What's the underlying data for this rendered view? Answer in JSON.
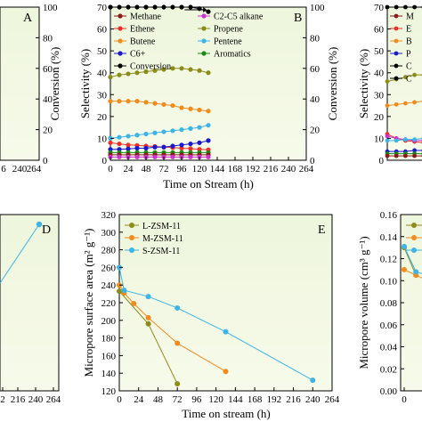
{
  "chart_data": [
    {
      "panel": "A",
      "type": "line",
      "panel_label": "A",
      "xlabel": "",
      "ylabel": "Conversion (%)",
      "xticks": [
        "6",
        "240",
        "264"
      ],
      "yticks": [
        "0",
        "20",
        "40",
        "60",
        "80",
        "100"
      ],
      "ylim": [
        0,
        100
      ],
      "series": []
    },
    {
      "panel": "B",
      "type": "line",
      "panel_label": "B",
      "xlabel": "Time on Stream (h)",
      "ylabel": "Selectivity (%)",
      "ylabel_right": "Conversion (%)",
      "xlim": [
        0,
        264
      ],
      "ylim": [
        0,
        70
      ],
      "ylim_right": [
        0,
        100
      ],
      "xticks": [
        "0",
        "24",
        "48",
        "72",
        "96",
        "120",
        "144",
        "168",
        "192",
        "216",
        "240",
        "264"
      ],
      "yticks": [
        "0",
        "10",
        "20",
        "30",
        "40",
        "50",
        "60",
        "70"
      ],
      "yticks_right": [
        "0",
        "20",
        "40",
        "60",
        "80",
        "100"
      ],
      "legend": [
        {
          "label": "Methane",
          "color": "#8b1a1a"
        },
        {
          "label": "C2-C5 alkane",
          "color": "#cc33cc"
        },
        {
          "label": "Ethene",
          "color": "#e8322a"
        },
        {
          "label": "Propene",
          "color": "#8c8c1a"
        },
        {
          "label": "Butene",
          "color": "#f08c1e"
        },
        {
          "label": "Pentene",
          "color": "#3cb4e6"
        },
        {
          "label": "C6+",
          "color": "#1a1acc"
        },
        {
          "label": "Aromatics",
          "color": "#1a8c1a"
        },
        {
          "label": "Conversion",
          "color": "#000000"
        }
      ],
      "x": [
        0,
        12,
        24,
        36,
        48,
        60,
        72,
        84,
        96,
        108,
        120,
        132
      ],
      "series": [
        {
          "label": "Propene",
          "axis": "left",
          "color": "#8c8c1a",
          "values": [
            38,
            39,
            39.5,
            40,
            40.5,
            41,
            41.5,
            42,
            42,
            41.5,
            41,
            40
          ]
        },
        {
          "label": "Butene",
          "axis": "left",
          "color": "#f08c1e",
          "values": [
            27,
            27,
            27,
            27,
            26.5,
            26,
            25.5,
            25,
            24,
            23.5,
            23,
            22.5
          ]
        },
        {
          "label": "Pentene",
          "axis": "left",
          "color": "#3cb4e6",
          "values": [
            10,
            10.5,
            11,
            11.5,
            12,
            12.5,
            13,
            13.5,
            14,
            14.5,
            15,
            16
          ]
        },
        {
          "label": "Ethene",
          "axis": "left",
          "color": "#e8322a",
          "values": [
            8,
            7.5,
            7,
            6.8,
            6.5,
            6.3,
            6,
            5.8,
            5.5,
            5.3,
            5,
            4.8
          ]
        },
        {
          "label": "C6+",
          "axis": "left",
          "color": "#1a1acc",
          "values": [
            5,
            5,
            5.2,
            5.5,
            5.5,
            6,
            6,
            6.5,
            7,
            7.5,
            8,
            9
          ]
        },
        {
          "label": "Aromatics",
          "axis": "left",
          "color": "#1a8c1a",
          "values": [
            3.5,
            3.5,
            3.5,
            3.5,
            3.5,
            3.5,
            3.5,
            3.5,
            3.5,
            3.5,
            3.5,
            3.5
          ]
        },
        {
          "label": "Methane",
          "axis": "left",
          "color": "#8b1a1a",
          "values": [
            2.5,
            2.5,
            2.5,
            2.5,
            2.5,
            2.5,
            2.5,
            2.5,
            2.5,
            2.5,
            2.5,
            2.5
          ]
        },
        {
          "label": "C2-C5 alkane",
          "axis": "left",
          "color": "#cc33cc",
          "values": [
            1.5,
            1.5,
            1.5,
            1.5,
            1.5,
            1.5,
            1.5,
            1.5,
            1.5,
            1.5,
            1.5,
            1.5
          ]
        },
        {
          "label": "Conversion",
          "axis": "right",
          "color": "#000000",
          "values": [
            100,
            100,
            100,
            100,
            100,
            100,
            100,
            100,
            100,
            100,
            99,
            97
          ]
        }
      ]
    },
    {
      "panel": "C",
      "type": "line",
      "panel_label": "",
      "ylabel": "Selectivity (%)",
      "ylim": [
        0,
        70
      ],
      "yticks": [
        "0",
        "10",
        "20",
        "30",
        "40",
        "50",
        "60",
        "70"
      ],
      "legend_partial": [
        "M",
        "E",
        "B",
        "P",
        "C",
        "C"
      ],
      "x": [
        0,
        12,
        24,
        36,
        48
      ],
      "series": [
        {
          "label": "Propene",
          "color": "#8c8c1a",
          "values": [
            36,
            37,
            38,
            39,
            39
          ]
        },
        {
          "label": "Butene",
          "color": "#f08c1e",
          "values": [
            25,
            25.5,
            26,
            26.5,
            27
          ]
        },
        {
          "label": "Ethene",
          "color": "#e8322a",
          "values": [
            12,
            10,
            9,
            8.5,
            8
          ]
        },
        {
          "label": "C2-C5 alkane",
          "color": "#cc33cc",
          "values": [
            11,
            10,
            9.5,
            9,
            9
          ]
        },
        {
          "label": "Pentene",
          "color": "#3cb4e6",
          "values": [
            9,
            9,
            9.5,
            9.5,
            10
          ]
        },
        {
          "label": "C6+",
          "color": "#1a1acc",
          "values": [
            4,
            4,
            4,
            4.5,
            4.5
          ]
        },
        {
          "label": "Aromatics",
          "color": "#1a8c1a",
          "values": [
            3,
            3,
            3,
            3,
            3
          ]
        },
        {
          "label": "Methane",
          "color": "#8b1a1a",
          "values": [
            2,
            2,
            2,
            2,
            2
          ]
        },
        {
          "label": "Conversion",
          "color": "#000000",
          "values": [
            100,
            100,
            100,
            100,
            100
          ]
        }
      ]
    },
    {
      "panel": "D",
      "type": "line",
      "panel_label": "D",
      "xticks": [
        "2",
        "216",
        "240",
        "264"
      ],
      "series": [
        {
          "label": "",
          "color": "#3cb4e6",
          "x": [
            0,
            240
          ],
          "values": [
            0.6,
            1.0
          ]
        }
      ]
    },
    {
      "panel": "E",
      "type": "line",
      "panel_label": "E",
      "xlabel": "Time on stream (h)",
      "ylabel": "Micropore surface area (m² g⁻¹)",
      "xlim": [
        0,
        264
      ],
      "ylim": [
        120,
        320
      ],
      "xticks": [
        "0",
        "24",
        "48",
        "72",
        "96",
        "120",
        "144",
        "168",
        "192",
        "216",
        "240",
        "264"
      ],
      "yticks": [
        "120",
        "140",
        "160",
        "180",
        "200",
        "220",
        "240",
        "260",
        "280",
        "300",
        "320"
      ],
      "legend": [
        {
          "label": "L-ZSM-11",
          "color": "#8c8c1a"
        },
        {
          "label": "M-ZSM-11",
          "color": "#f08c1e"
        },
        {
          "label": "S-ZSM-11",
          "color": "#3cb4e6"
        }
      ],
      "series": [
        {
          "name": "L-ZSM-11",
          "color": "#8c8c1a",
          "x": [
            0,
            36,
            72
          ],
          "y": [
            233,
            196,
            128
          ]
        },
        {
          "name": "M-ZSM-11",
          "color": "#f08c1e",
          "x": [
            0,
            6,
            18,
            36,
            72,
            132
          ],
          "y": [
            240,
            231,
            219,
            203,
            174,
            142
          ]
        },
        {
          "name": "S-ZSM-11",
          "color": "#3cb4e6",
          "x": [
            0,
            6,
            36,
            72,
            132,
            240
          ],
          "y": [
            260,
            234,
            227,
            214,
            187,
            132
          ]
        }
      ]
    },
    {
      "panel": "F",
      "type": "line",
      "panel_label": "",
      "ylabel": "Micropore volume (cm³ g⁻¹)",
      "ylim": [
        0.0,
        0.16
      ],
      "yticks": [
        "0.00",
        "0.02",
        "0.04",
        "0.06",
        "0.08",
        "0.10",
        "0.12",
        "0.14",
        "0.16"
      ],
      "xticks": [
        "0"
      ],
      "series": [
        {
          "name": "L-ZSM-11",
          "color": "#8c8c1a",
          "x": [
            0,
            6
          ],
          "y": [
            0.13,
            0.105
          ]
        },
        {
          "name": "M-ZSM-11",
          "color": "#f08c1e",
          "x": [
            0,
            6,
            12
          ],
          "y": [
            0.11,
            0.105,
            0.1
          ]
        },
        {
          "name": "S-ZSM-11",
          "color": "#3cb4e6",
          "x": [
            0,
            6,
            12
          ],
          "y": [
            0.131,
            0.108,
            0.105
          ]
        }
      ]
    }
  ]
}
